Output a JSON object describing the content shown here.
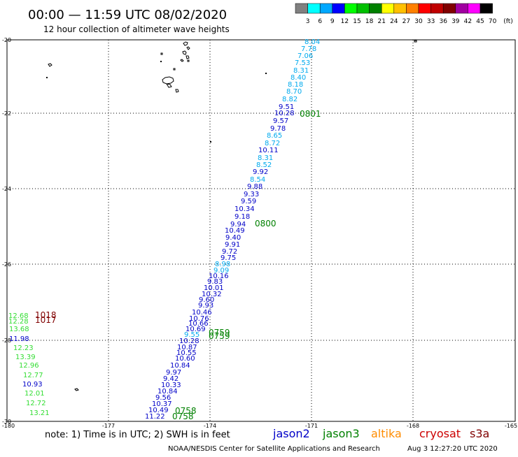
{
  "header": {
    "title": "00:00 — 11:59 UTC 08/02/2020",
    "subtitle": "12 hour collection of altimeter wave heights"
  },
  "colorbar": {
    "unit": "(ft)",
    "bins": [
      {
        "label": "3",
        "color": "#808080"
      },
      {
        "label": "6",
        "color": "#00ffff"
      },
      {
        "label": "9",
        "color": "#00a8ff"
      },
      {
        "label": "12",
        "color": "#0000ff"
      },
      {
        "label": "15",
        "color": "#00ff00"
      },
      {
        "label": "18",
        "color": "#00c000"
      },
      {
        "label": "21",
        "color": "#008000"
      },
      {
        "label": "24",
        "color": "#ffff00"
      },
      {
        "label": "27",
        "color": "#ffc000"
      },
      {
        "label": "30",
        "color": "#ff8000"
      },
      {
        "label": "33",
        "color": "#ff0000"
      },
      {
        "label": "36",
        "color": "#c00000"
      },
      {
        "label": "39",
        "color": "#800000"
      },
      {
        "label": "42",
        "color": "#a000a0"
      },
      {
        "label": "45",
        "color": "#ff00ff"
      },
      {
        "label": "70",
        "color": "#000000"
      }
    ]
  },
  "axes": {
    "lat_labels": [
      "-20",
      "-22",
      "-24",
      "-26",
      "-28",
      "-30"
    ],
    "lon_labels": [
      "-180",
      "-177",
      "-174",
      "-171",
      "-168",
      "-165"
    ]
  },
  "map": {
    "colors": {
      "jason2": "#0000c8",
      "jason3": "#008000",
      "altika": "#ff8c00",
      "cryosat": "#cc0000",
      "s3a": "#800000",
      "light_cyan": "#00aaee",
      "light_green": "#33dd33"
    },
    "values": [
      {
        "text": "8.04",
        "c": "light_cyan"
      },
      {
        "text": "7.78",
        "c": "light_cyan"
      },
      {
        "text": "7.06",
        "c": "light_cyan"
      },
      {
        "text": "7.53",
        "c": "light_cyan"
      },
      {
        "text": "8.31",
        "c": "light_cyan"
      },
      {
        "text": "8.40",
        "c": "light_cyan"
      },
      {
        "text": "8.18",
        "c": "light_cyan"
      },
      {
        "text": "8.70",
        "c": "light_cyan"
      },
      {
        "text": "8.82",
        "c": "light_cyan"
      },
      {
        "text": "9.51",
        "c": "jason2"
      },
      {
        "text": "10.28",
        "c": "jason2"
      },
      {
        "text": "9.57",
        "c": "jason2"
      },
      {
        "text": "9.78",
        "c": "jason2"
      },
      {
        "text": "8.65",
        "c": "light_cyan"
      },
      {
        "text": "8.72",
        "c": "light_cyan"
      },
      {
        "text": "10.11",
        "c": "jason2"
      },
      {
        "text": "8.31",
        "c": "light_cyan"
      },
      {
        "text": "8.52",
        "c": "light_cyan"
      },
      {
        "text": "9.92",
        "c": "jason2"
      },
      {
        "text": "8.54",
        "c": "light_cyan"
      },
      {
        "text": "9.88",
        "c": "jason2"
      },
      {
        "text": "9.33",
        "c": "jason2"
      },
      {
        "text": "9.59",
        "c": "jason2"
      },
      {
        "text": "10.34",
        "c": "jason2"
      },
      {
        "text": "9.18",
        "c": "jason2"
      },
      {
        "text": "9.94",
        "c": "jason2"
      },
      {
        "text": "10.49",
        "c": "jason2"
      },
      {
        "text": "9.40",
        "c": "jason2"
      },
      {
        "text": "9.91",
        "c": "jason2"
      },
      {
        "text": "9.72",
        "c": "jason2"
      },
      {
        "text": "9.75",
        "c": "jason2"
      },
      {
        "text": "8.98",
        "c": "light_cyan"
      },
      {
        "text": "9.09",
        "c": "light_cyan"
      },
      {
        "text": "10.16",
        "c": "jason2"
      },
      {
        "text": "9.83",
        "c": "jason2"
      },
      {
        "text": "10.01",
        "c": "jason2"
      },
      {
        "text": "10.32",
        "c": "jason2"
      },
      {
        "text": "9.60",
        "c": "jason2"
      },
      {
        "text": "9.93",
        "c": "jason2"
      },
      {
        "text": "10.46",
        "c": "jason2"
      },
      {
        "text": "10.76",
        "c": "jason2"
      },
      {
        "text": "10.66",
        "c": "jason2"
      },
      {
        "text": "10.69",
        "c": "jason2"
      },
      {
        "text": "9.55",
        "c": "light_cyan"
      },
      {
        "text": "10.28",
        "c": "jason2"
      },
      {
        "text": "10.87",
        "c": "jason2"
      },
      {
        "text": "10.55",
        "c": "jason2"
      },
      {
        "text": "10.60",
        "c": "jason2"
      },
      {
        "text": "10.84",
        "c": "jason2"
      },
      {
        "text": "9.97",
        "c": "jason2"
      },
      {
        "text": "9.42",
        "c": "jason2"
      },
      {
        "text": "10.33",
        "c": "jason2"
      },
      {
        "text": "10.84",
        "c": "jason2"
      },
      {
        "text": "9.56",
        "c": "jason2"
      },
      {
        "text": "10.37",
        "c": "jason2"
      },
      {
        "text": "10.49",
        "c": "jason2"
      },
      {
        "text": "11.22",
        "c": "jason2"
      }
    ],
    "left_values": [
      {
        "text": "12.68",
        "c": "light_green"
      },
      {
        "text": "12.28",
        "c": "light_green"
      },
      {
        "text": "13.68",
        "c": "light_green"
      },
      {
        "text": "11.98",
        "c": "jason2"
      },
      {
        "text": "12.23",
        "c": "light_green"
      },
      {
        "text": "13.39",
        "c": "light_green"
      },
      {
        "text": "12.96",
        "c": "light_green"
      },
      {
        "text": "12.77",
        "c": "light_green"
      },
      {
        "text": "10.93",
        "c": "jason2"
      },
      {
        "text": "12.01",
        "c": "light_green"
      },
      {
        "text": "12.72",
        "c": "light_green"
      },
      {
        "text": "13.21",
        "c": "light_green"
      }
    ],
    "time_labels": [
      {
        "text": "0801",
        "c": "jason3"
      },
      {
        "text": "0800",
        "c": "jason3"
      },
      {
        "text": "0759",
        "c": "jason3"
      },
      {
        "text": "0759",
        "c": "jason3"
      },
      {
        "text": "0758",
        "c": "jason3"
      },
      {
        "text": "0758",
        "c": "jason3"
      },
      {
        "text": "1018",
        "c": "s3a"
      },
      {
        "text": "1017",
        "c": "s3a"
      }
    ]
  },
  "footer": {
    "note": "note: 1) Time is in UTC; 2) SWH is in feet",
    "satellites": [
      {
        "text": "jason2",
        "color": "#0000c8"
      },
      {
        "text": "jason3",
        "color": "#008000"
      },
      {
        "text": "altika",
        "color": "#ff8c00"
      },
      {
        "text": "cryosat",
        "color": "#cc0000"
      },
      {
        "text": "s3a",
        "color": "#800000"
      }
    ],
    "credit": "NOAA/NESDIS Center for Satellite Applications and Research",
    "timestamp": "Aug  3 12:27:20 UTC 2020"
  }
}
